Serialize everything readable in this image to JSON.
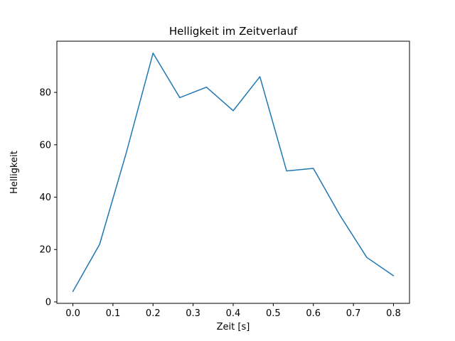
{
  "chart_data": {
    "type": "line",
    "title": "Helligkeit im Zeitverlauf",
    "xlabel": "Zeit [s]",
    "ylabel": "Helligkeit",
    "x": [
      0.0,
      0.0667,
      0.1333,
      0.2,
      0.2667,
      0.3333,
      0.4,
      0.4667,
      0.5333,
      0.6,
      0.6667,
      0.7333,
      0.8
    ],
    "y": [
      4,
      22,
      57,
      95,
      78,
      82,
      73,
      86,
      50,
      51,
      33,
      17,
      10
    ],
    "xlim": [
      -0.04,
      0.84
    ],
    "ylim": [
      -0.55,
      99.55
    ],
    "xticks": [
      0.0,
      0.1,
      0.2,
      0.3,
      0.4,
      0.5,
      0.6,
      0.7,
      0.8
    ],
    "xtick_labels": [
      "0.0",
      "0.1",
      "0.2",
      "0.3",
      "0.4",
      "0.5",
      "0.6",
      "0.7",
      "0.8"
    ],
    "yticks": [
      0,
      20,
      40,
      60,
      80
    ],
    "ytick_labels": [
      "0",
      "20",
      "40",
      "60",
      "80"
    ],
    "line_color": "#1f77b4",
    "axis_color": "#000000",
    "grid": false,
    "legend_position": "none"
  }
}
